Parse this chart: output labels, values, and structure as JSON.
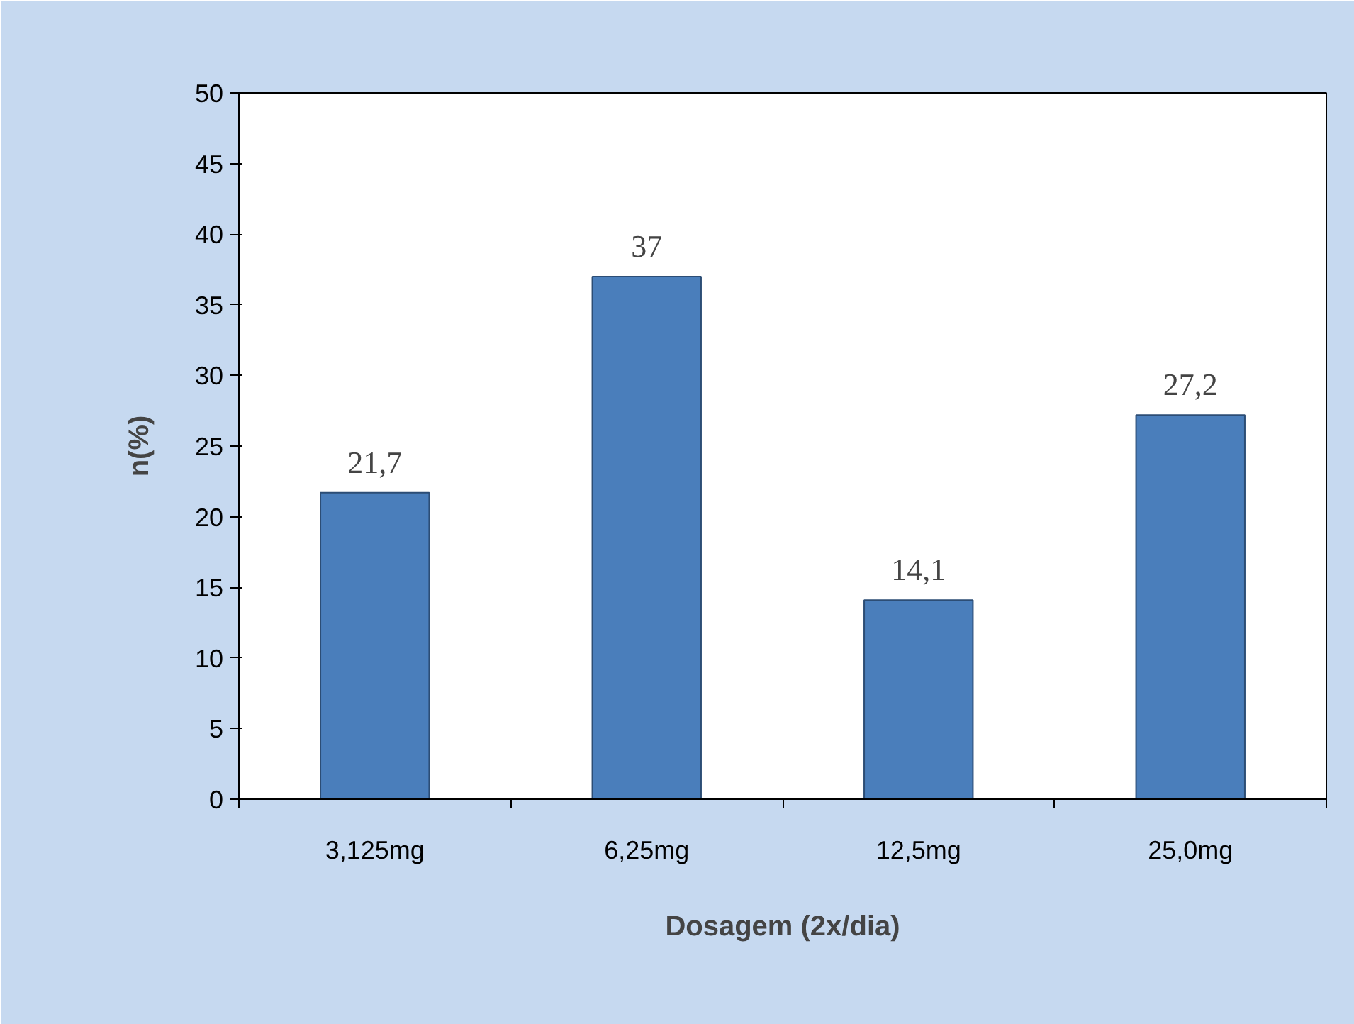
{
  "chart_data": {
    "type": "bar",
    "categories": [
      "3,125mg",
      "6,25mg",
      "12,5mg",
      "25,0mg"
    ],
    "values": [
      21.7,
      37,
      14.1,
      27.2
    ],
    "value_labels": [
      "21,7",
      "37",
      "14,1",
      "27,2"
    ],
    "color": "#4a7ebb",
    "xlabel": "Dosagem (2x/dia)",
    "ylabel": "n(%)",
    "ylim": [
      0,
      50
    ],
    "yticks": [
      0,
      5,
      10,
      15,
      20,
      25,
      30,
      35,
      40,
      45,
      50
    ]
  }
}
